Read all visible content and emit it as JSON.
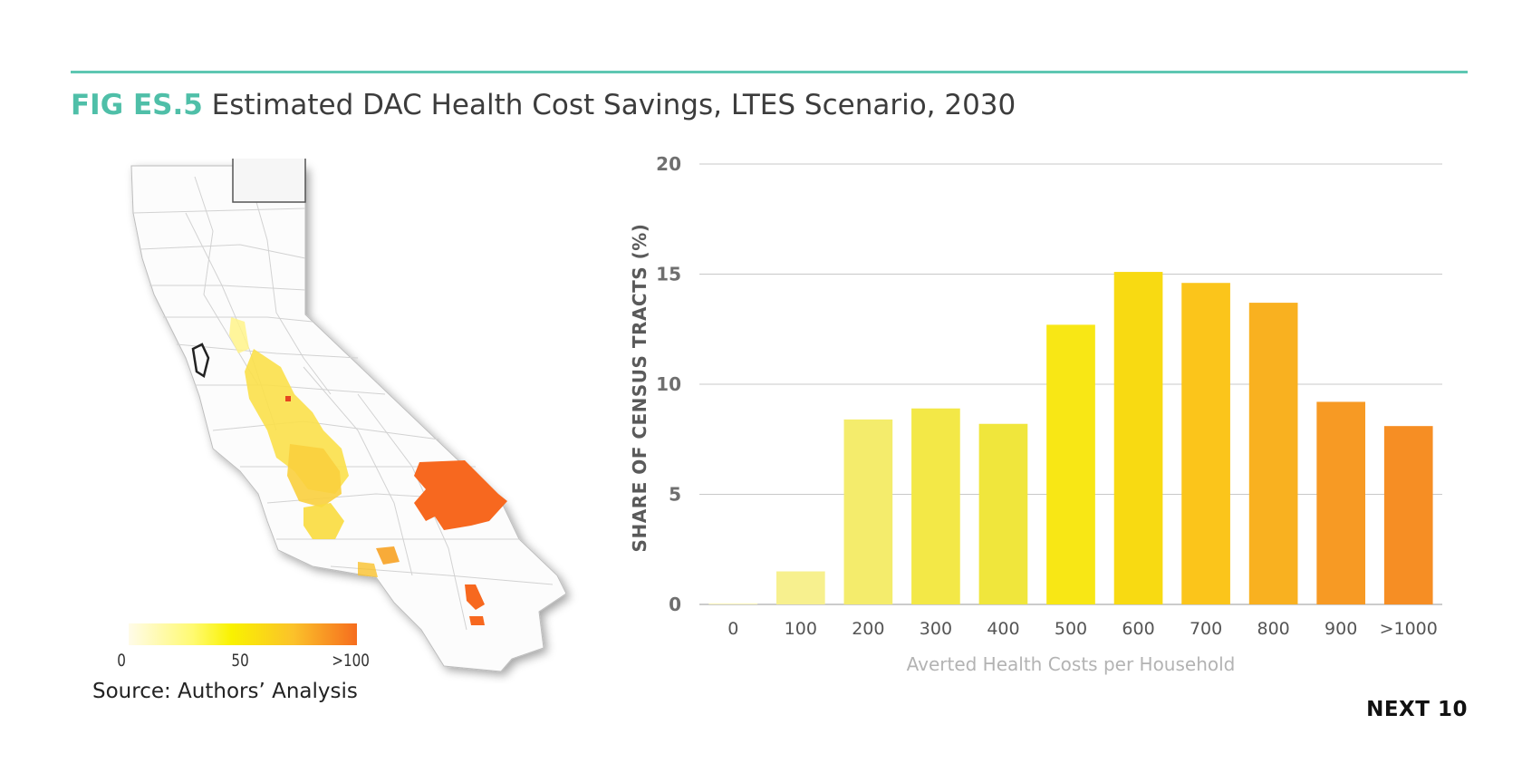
{
  "figure": {
    "id": "FIG ES.5",
    "title": "Estimated DAC Health Cost Savings, LTES Scenario, 2030"
  },
  "map": {
    "legend": {
      "labels": [
        "0",
        "50",
        ">100"
      ]
    },
    "source": "Source: Authors’ Analysis"
  },
  "brand": "NEXT 10",
  "chart_data": {
    "type": "bar",
    "categories": [
      "0",
      "100",
      "200",
      "300",
      "400",
      "500",
      "600",
      "700",
      "800",
      "900",
      ">1000"
    ],
    "values": [
      0.05,
      1.5,
      8.4,
      8.9,
      8.2,
      12.7,
      15.1,
      14.6,
      13.7,
      9.2,
      8.1
    ],
    "colors": [
      "#fbf6c0",
      "#f7f08e",
      "#f4ec6c",
      "#f3e847",
      "#f0e63c",
      "#f8e715",
      "#f8da12",
      "#fbc51b",
      "#f9b120",
      "#f79a24",
      "#f68e24"
    ],
    "title": "",
    "xlabel": "Averted Health Costs per Household",
    "ylabel": "SHARE OF CENSUS TRACTS (%)",
    "ylim": [
      0,
      20
    ],
    "yticks": [
      0,
      5,
      10,
      15,
      20
    ],
    "grid": true
  }
}
